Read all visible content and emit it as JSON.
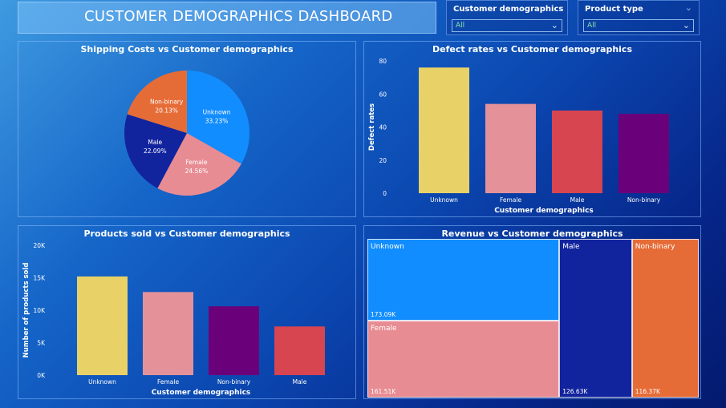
{
  "dashboard": {
    "title": "CUSTOMER DEMOGRAPHICS DASHBOARD"
  },
  "slicers": [
    {
      "label": "Customer demographics",
      "value": "All"
    },
    {
      "label": "Product type",
      "value": "All"
    }
  ],
  "colors": {
    "Unknown": "#118dff",
    "Female": "#e88c93",
    "Male": "#12239e",
    "Non-binary": "#e66c37",
    "bar_yellow": "#e8d166",
    "bar_pink": "#e5919a",
    "bar_red": "#d64550",
    "bar_purple": "#6b007b"
  },
  "chart_data": [
    {
      "type": "pie",
      "title": "Shipping Costs vs Customer demographics",
      "slices": [
        {
          "label": "Unknown",
          "value": 33.23,
          "display": "33.23%",
          "color": "#118dff"
        },
        {
          "label": "Female",
          "value": 24.56,
          "display": "24.56%",
          "color": "#e88c93"
        },
        {
          "label": "Male",
          "value": 22.09,
          "display": "22.09%",
          "color": "#12239e"
        },
        {
          "label": "Non-binary",
          "value": 20.13,
          "display": "20.13%",
          "color": "#e66c37"
        }
      ]
    },
    {
      "type": "bar",
      "title": "Defect rates vs Customer demographics",
      "xlabel": "Customer demographics",
      "ylabel": "Defect rates",
      "categories": [
        "Unknown",
        "Female",
        "Male",
        "Non-binary"
      ],
      "values": [
        76,
        54,
        50,
        48
      ],
      "colors": [
        "#e8d166",
        "#e5919a",
        "#d64550",
        "#6b007b"
      ],
      "ylim": [
        0,
        80
      ],
      "yticks": [
        "0",
        "20",
        "40",
        "60",
        "80"
      ],
      "ytick_values": [
        0,
        20,
        40,
        60,
        80
      ]
    },
    {
      "type": "bar",
      "title": "Products sold vs Customer demographics",
      "xlabel": "Customer demographics",
      "ylabel": "Number of products sold",
      "categories": [
        "Unknown",
        "Female",
        "Non-binary",
        "Male"
      ],
      "values": [
        15200,
        12800,
        10600,
        7500
      ],
      "colors": [
        "#e8d166",
        "#e5919a",
        "#6b007b",
        "#d64550"
      ],
      "ylim": [
        0,
        20000
      ],
      "yticks": [
        "0K",
        "5K",
        "10K",
        "15K",
        "20K"
      ],
      "ytick_values": [
        0,
        5000,
        10000,
        15000,
        20000
      ]
    },
    {
      "type": "treemap",
      "title": "Revenue vs Customer demographics",
      "items": [
        {
          "label": "Unknown",
          "value": 173.09,
          "display": "173.09K",
          "color": "#118dff"
        },
        {
          "label": "Female",
          "value": 161.51,
          "display": "161.51K",
          "color": "#e88c93"
        },
        {
          "label": "Male",
          "value": 126.63,
          "display": "126.63K",
          "color": "#12239e"
        },
        {
          "label": "Non-binary",
          "value": 116.37,
          "display": "116.37K",
          "color": "#e66c37"
        }
      ]
    }
  ]
}
